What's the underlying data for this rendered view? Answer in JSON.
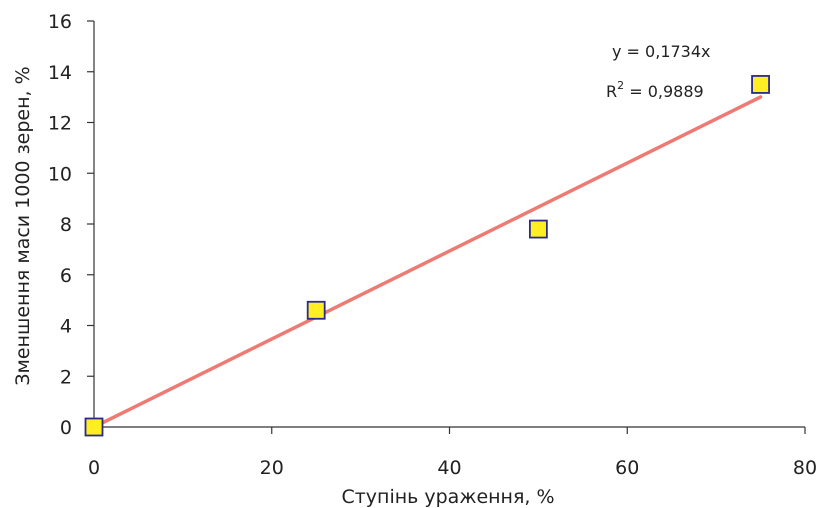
{
  "chart_data": {
    "type": "scatter",
    "title": "",
    "xlabel": "Ступінь ураження, %",
    "ylabel": "Зменшення маси 1000 зерен, %",
    "xlim": [
      0,
      80
    ],
    "ylim": [
      0,
      16
    ],
    "x_ticks": [
      "0",
      "20",
      "40",
      "60",
      "80"
    ],
    "y_ticks": [
      "0",
      "2",
      "4",
      "6",
      "8",
      "10",
      "12",
      "14",
      "16"
    ],
    "grid": false,
    "legend": "none",
    "points": {
      "x": [
        0,
        25,
        50,
        75
      ],
      "y": [
        0,
        4.6,
        7.8,
        13.5
      ]
    },
    "marker": {
      "shape": "square",
      "fill": "#ffee22",
      "stroke": "#2a2a8c"
    },
    "trendline": {
      "type": "linear",
      "slope": 0.1734,
      "intercept": 0,
      "x_range": [
        0,
        75
      ],
      "color": "#ee7b73",
      "equation": "y = 0,1734x",
      "r2_prefix": "R",
      "r2_exponent": "2",
      "r2_value": " = 0,9889"
    }
  }
}
